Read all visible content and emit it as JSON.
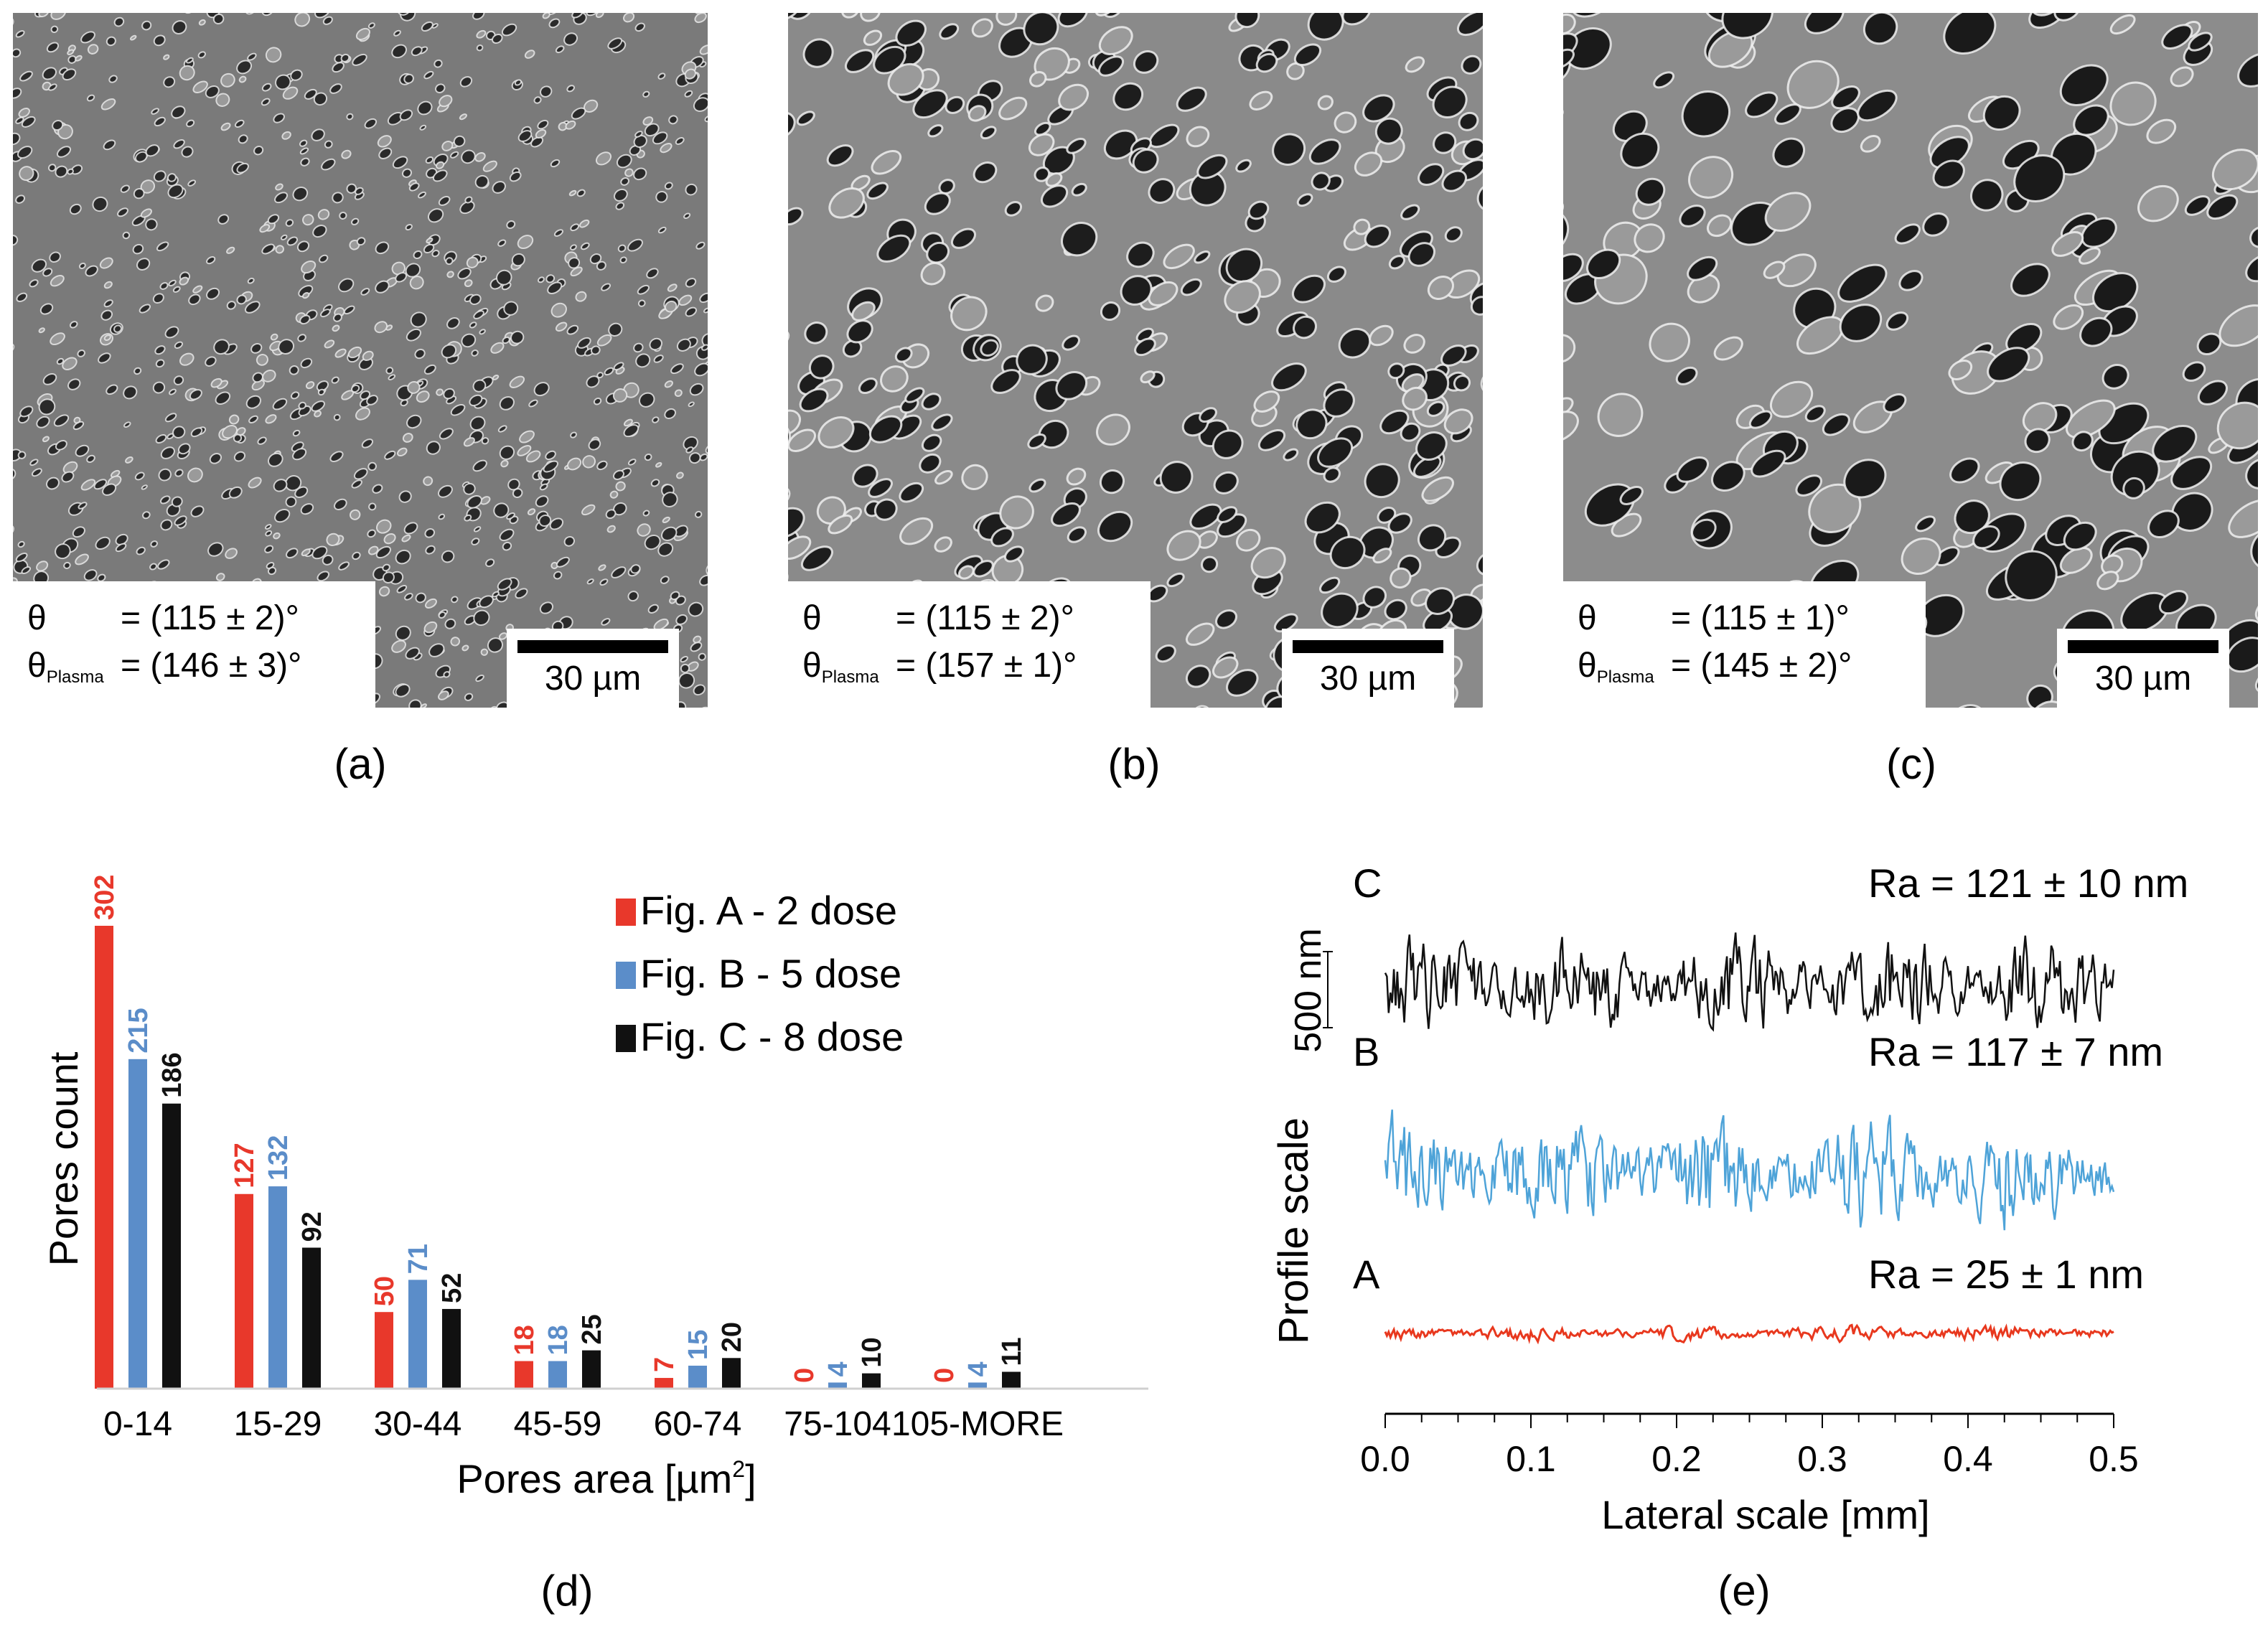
{
  "panels": [
    {
      "id": "a",
      "label": "(a)",
      "theta_sym": "θ",
      "theta_value": "= (115 ± 2)°",
      "theta_plasma_sym": "θ",
      "theta_plasma_sub": "Plasma",
      "theta_plasma_value": "= (146 ± 3)°",
      "scale_bar": "30 µm"
    },
    {
      "id": "b",
      "label": "(b)",
      "theta_sym": "θ",
      "theta_value": "= (115 ± 2)°",
      "theta_plasma_sym": "θ",
      "theta_plasma_sub": "Plasma",
      "theta_plasma_value": "= (157 ± 1)°",
      "scale_bar": "30 µm"
    },
    {
      "id": "c",
      "label": "(c)",
      "theta_sym": "θ",
      "theta_value": "= (115 ± 1)°",
      "theta_plasma_sym": "θ",
      "theta_plasma_sub": "Plasma",
      "theta_plasma_value": "= (145 ± 2)°",
      "scale_bar": "30 µm"
    }
  ],
  "label_d": "(d)",
  "label_e": "(e)",
  "chart_data": [
    {
      "type": "bar",
      "title": "",
      "xlabel": "Pores area [µm",
      "xlabel_sup": "2",
      "xlabel_end": "]",
      "ylabel": "Pores count",
      "ylim": [
        0,
        320
      ],
      "categories": [
        "0-14",
        "15-29",
        "30-44",
        "45-59",
        "60-74",
        "75-104",
        "105-MORE"
      ],
      "series": [
        {
          "name": "Fig. A - 2 dose",
          "color": "#e8382b",
          "values": [
            302,
            127,
            50,
            18,
            7,
            0,
            0
          ]
        },
        {
          "name": "Fig. B - 5 dose",
          "color": "#5b8dc9",
          "values": [
            215,
            132,
            71,
            18,
            15,
            4,
            4
          ]
        },
        {
          "name": "Fig. C - 8 dose",
          "color": "#111111",
          "values": [
            186,
            92,
            52,
            25,
            20,
            10,
            11
          ]
        }
      ],
      "legend_position": "top-right"
    },
    {
      "type": "line",
      "xlabel": "Lateral scale [mm]",
      "ylabel": "Profile scale",
      "scalebar_label": "500 nm",
      "xlim": [
        0,
        0.5
      ],
      "xticks": [
        "0.0",
        "0.1",
        "0.2",
        "0.3",
        "0.4",
        "0.5"
      ],
      "series": [
        {
          "name": "C",
          "ra": "Ra = 121 ± 10 nm",
          "color": "#111111",
          "roughness_nm": 121
        },
        {
          "name": "B",
          "ra": "Ra = 117 ± 7 nm",
          "color": "#4ea3d8",
          "roughness_nm": 117
        },
        {
          "name": "A",
          "ra": "Ra = 25 ± 1 nm",
          "color": "#e8381e",
          "roughness_nm": 25
        }
      ]
    }
  ]
}
